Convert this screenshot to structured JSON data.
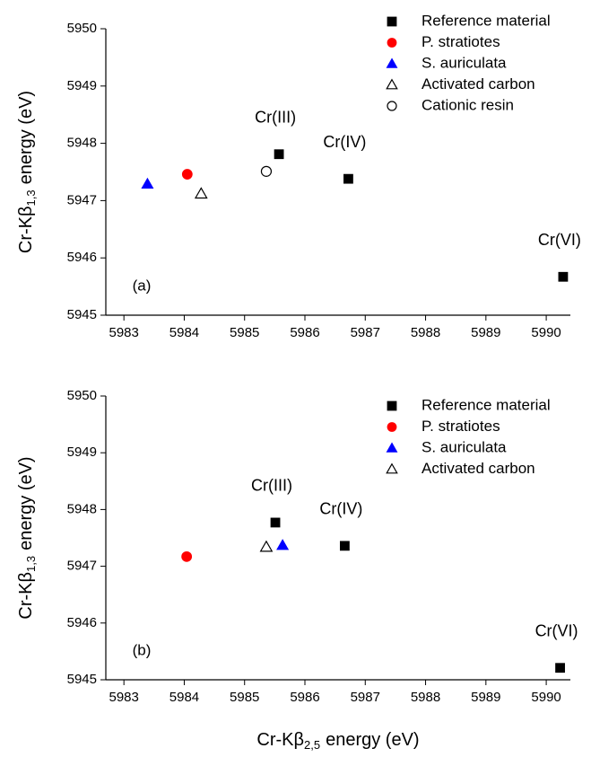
{
  "chart_data": [
    {
      "type": "scatter",
      "panel_label": "(a)",
      "ylabel": {
        "text": "Cr-Kβ",
        "subscript": "1,3",
        "suffix": "energy (eV)"
      },
      "xlim": [
        5982.7,
        5990.4
      ],
      "xticks": [
        5983,
        5984,
        5985,
        5986,
        5987,
        5988,
        5989,
        5990
      ],
      "ylim": [
        5945,
        5950
      ],
      "yticks": [
        5945,
        5946,
        5947,
        5948,
        5949,
        5950
      ],
      "legend": "upper right",
      "series": [
        {
          "name": "Reference material",
          "color": "#000000",
          "marker": "square",
          "x": [
            5985.57,
            5986.72,
            5990.28
          ],
          "y": [
            5947.81,
            5947.38,
            5945.67
          ],
          "point_labels": [
            "Cr(III)",
            "Cr(IV)",
            "Cr(VI)"
          ]
        },
        {
          "name": "P. stratiotes",
          "color": "#ff0000",
          "marker": "circle",
          "x": [
            5984.05
          ],
          "y": [
            5947.46
          ]
        },
        {
          "name": "S. auriculata",
          "color": "#0000ff",
          "marker": "triangle",
          "x": [
            5983.39
          ],
          "y": [
            5947.29
          ]
        },
        {
          "name": "Activated carbon",
          "color": "#000000",
          "marker": "triangle-open",
          "x": [
            5984.28
          ],
          "y": [
            5947.12
          ]
        },
        {
          "name": "Cationic resin",
          "color": "#000000",
          "marker": "circle-open",
          "x": [
            5985.36
          ],
          "y": [
            5947.51
          ]
        }
      ]
    },
    {
      "type": "scatter",
      "panel_label": "(b)",
      "xlabel": {
        "text": "Cr-Kβ",
        "subscript": "2,5",
        "suffix": "energy (eV)"
      },
      "ylabel": {
        "text": "Cr-Kβ",
        "subscript": "1,3",
        "suffix": "energy (eV)"
      },
      "xlim": [
        5982.7,
        5990.4
      ],
      "xticks": [
        5983,
        5984,
        5985,
        5986,
        5987,
        5988,
        5989,
        5990
      ],
      "ylim": [
        5945,
        5950
      ],
      "yticks": [
        5945,
        5946,
        5947,
        5948,
        5949,
        5950
      ],
      "legend": "upper right",
      "series": [
        {
          "name": "Reference material",
          "color": "#000000",
          "marker": "square",
          "x": [
            5985.51,
            5986.66,
            5990.23
          ],
          "y": [
            5947.77,
            5947.36,
            5945.21
          ],
          "point_labels": [
            "Cr(III)",
            "Cr(IV)",
            "Cr(VI)"
          ]
        },
        {
          "name": "P. stratiotes",
          "color": "#ff0000",
          "marker": "circle",
          "x": [
            5984.04
          ],
          "y": [
            5947.17
          ]
        },
        {
          "name": "S. auriculata",
          "color": "#0000ff",
          "marker": "triangle",
          "x": [
            5985.63
          ],
          "y": [
            5947.37
          ]
        },
        {
          "name": "Activated carbon",
          "color": "#000000",
          "marker": "triangle-open",
          "x": [
            5985.36
          ],
          "y": [
            5947.34
          ]
        }
      ]
    }
  ]
}
